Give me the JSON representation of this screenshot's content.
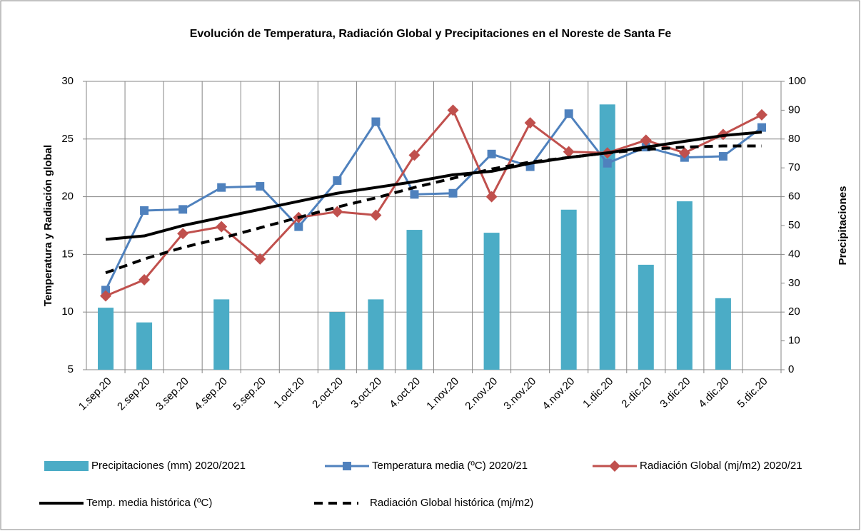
{
  "chart_data": {
    "type": "bar_line",
    "title": "Evolución de Temperatura, Radiación Global y Precipitaciones en el Noreste de Santa Fe",
    "y_label": "Temperatura y Radiación global",
    "y2_label": "Precipitaciones",
    "categories": [
      "1.sep.20",
      "2.sep.20",
      "3.sep.20",
      "4.sep.20",
      "5.sep.20",
      "1.oct.20",
      "2.oct.20",
      "3.oct.20",
      "4.oct.20",
      "1.nov.20",
      "2.nov.20",
      "3.nov.20",
      "4.nov.20",
      "1.dic.20",
      "2.dic.20",
      "3.dic.20",
      "4.dic.20",
      "5.dic.20"
    ],
    "ylim": [
      5,
      30
    ],
    "yticks": [
      5,
      10,
      15,
      20,
      25,
      30
    ],
    "y2lim": [
      0,
      100
    ],
    "y2ticks": [
      0,
      10,
      20,
      30,
      40,
      50,
      60,
      70,
      80,
      90,
      100
    ],
    "grid": true,
    "series": [
      {
        "name": "Precipitaciones (mm) 2020/2021",
        "type": "bar",
        "axis": "y2",
        "color": "#4bacc6",
        "values": [
          21.5,
          16.4,
          0,
          24.4,
          0,
          0,
          20,
          24.4,
          48.5,
          0,
          47.5,
          0,
          55.5,
          92,
          36.4,
          58.4,
          24.8,
          0
        ]
      },
      {
        "name": "Temperatura media (ºC) 2020/21",
        "type": "line",
        "color": "#4f81bd",
        "marker": "square",
        "values": [
          11.9,
          18.8,
          18.9,
          20.8,
          20.9,
          17.4,
          21.4,
          26.5,
          20.2,
          20.3,
          23.7,
          22.6,
          27.2,
          22.9,
          24.3,
          23.4,
          23.5,
          26.0
        ]
      },
      {
        "name": "Radiación Global (mj/m2) 2020/21",
        "type": "line",
        "color": "#c0504d",
        "marker": "diamond",
        "values": [
          11.4,
          12.8,
          16.8,
          17.4,
          14.6,
          18.2,
          18.7,
          18.4,
          23.6,
          27.5,
          20.0,
          26.4,
          23.9,
          23.8,
          24.9,
          23.8,
          25.4,
          27.1
        ]
      },
      {
        "name": "Temp. media histórica (ºC)",
        "type": "line",
        "color": "#000000",
        "dash": false,
        "values": [
          16.3,
          16.6,
          17.5,
          18.2,
          18.9,
          19.6,
          20.3,
          20.8,
          21.3,
          21.9,
          22.2,
          22.9,
          23.4,
          23.8,
          24.3,
          24.8,
          25.3,
          25.6
        ]
      },
      {
        "name": "Radiación Global histórica (mj/m2)",
        "type": "line",
        "color": "#000000",
        "dash": true,
        "values": [
          13.4,
          14.6,
          15.6,
          16.4,
          17.3,
          18.2,
          19.1,
          19.9,
          20.8,
          21.6,
          22.4,
          23.0,
          23.4,
          23.8,
          24.1,
          24.3,
          24.4,
          24.4
        ]
      }
    ]
  }
}
